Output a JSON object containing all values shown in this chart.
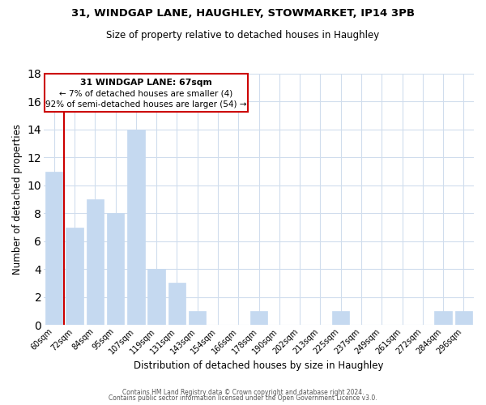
{
  "title1": "31, WINDGAP LANE, HAUGHLEY, STOWMARKET, IP14 3PB",
  "title2": "Size of property relative to detached houses in Haughley",
  "xlabel": "Distribution of detached houses by size in Haughley",
  "ylabel": "Number of detached properties",
  "categories": [
    "60sqm",
    "72sqm",
    "84sqm",
    "95sqm",
    "107sqm",
    "119sqm",
    "131sqm",
    "143sqm",
    "154sqm",
    "166sqm",
    "178sqm",
    "190sqm",
    "202sqm",
    "213sqm",
    "225sqm",
    "237sqm",
    "249sqm",
    "261sqm",
    "272sqm",
    "284sqm",
    "296sqm"
  ],
  "values": [
    11,
    7,
    9,
    8,
    14,
    4,
    3,
    1,
    0,
    0,
    1,
    0,
    0,
    0,
    1,
    0,
    0,
    0,
    0,
    1,
    1
  ],
  "bar_color": "#c5d9f0",
  "bar_edge_color": "#aec8e8",
  "highlight_color": "#cc0000",
  "ylim": [
    0,
    18
  ],
  "yticks": [
    0,
    2,
    4,
    6,
    8,
    10,
    12,
    14,
    16,
    18
  ],
  "annotation_title": "31 WINDGAP LANE: 67sqm",
  "annotation_line1": "← 7% of detached houses are smaller (4)",
  "annotation_line2": "92% of semi-detached houses are larger (54) →",
  "annotation_box_color": "#ffffff",
  "annotation_box_edge": "#cc0000",
  "footer1": "Contains HM Land Registry data © Crown copyright and database right 2024.",
  "footer2": "Contains public sector information licensed under the Open Government Licence v3.0."
}
